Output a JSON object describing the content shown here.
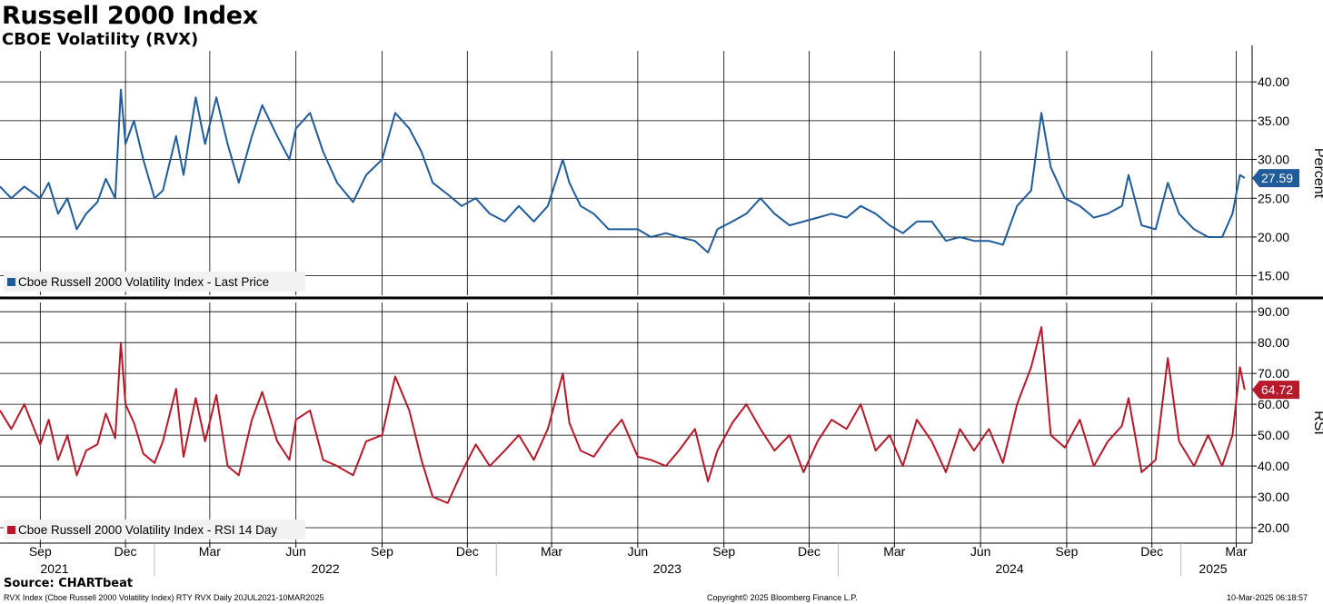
{
  "header": {
    "title": "Russell 2000 Index",
    "subtitle": "CBOE Volatility (RVX)"
  },
  "footer": {
    "source": "Source: CHARTbeat",
    "ticker_info": "RVX Index (Cboe Russell 2000 Volatility Index) RTY RVX  Daily 20JUL2021-10MAR2025",
    "copyright": "Copyright© 2025 Bloomberg Finance L.P.",
    "timestamp": "10-Mar-2025 06:18:57"
  },
  "colors": {
    "price_line": "#1f5c99",
    "rsi_line": "#b5192a",
    "grid": "#000000"
  },
  "chart_data": [
    {
      "type": "line",
      "title": "Cboe Russell 2000 Volatility Index - Last Price",
      "ylabel": "Percent",
      "ylim": [
        12.5,
        44
      ],
      "y_ticks": [
        "40.00",
        "35.00",
        "30.00",
        "25.00",
        "20.00",
        "15.00"
      ],
      "last_value_label": "27.59",
      "legend": "Cboe Russell 2000 Volatility Index - Last Price",
      "legend_position": "bottom-left",
      "series": [
        {
          "name": "Cboe Russell 2000 Volatility Index - Last Price",
          "x": [
            "2021-07-20",
            "2021-08-01",
            "2021-08-15",
            "2021-09-01",
            "2021-09-10",
            "2021-09-20",
            "2021-09-30",
            "2021-10-10",
            "2021-10-20",
            "2021-11-01",
            "2021-11-10",
            "2021-11-20",
            "2021-11-26",
            "2021-12-01",
            "2021-12-10",
            "2021-12-20",
            "2022-01-01",
            "2022-01-10",
            "2022-01-24",
            "2022-02-01",
            "2022-02-14",
            "2022-02-24",
            "2022-03-08",
            "2022-03-20",
            "2022-04-01",
            "2022-04-15",
            "2022-04-26",
            "2022-05-12",
            "2022-05-25",
            "2022-06-01",
            "2022-06-16",
            "2022-06-30",
            "2022-07-15",
            "2022-08-01",
            "2022-08-15",
            "2022-09-01",
            "2022-09-15",
            "2022-09-30",
            "2022-10-13",
            "2022-10-25",
            "2022-11-10",
            "2022-11-25",
            "2022-12-10",
            "2022-12-25",
            "2023-01-10",
            "2023-01-25",
            "2023-02-10",
            "2023-02-25",
            "2023-03-13",
            "2023-03-20",
            "2023-04-01",
            "2023-04-15",
            "2023-05-01",
            "2023-05-15",
            "2023-06-01",
            "2023-06-15",
            "2023-07-01",
            "2023-07-15",
            "2023-08-01",
            "2023-08-15",
            "2023-08-25",
            "2023-09-10",
            "2023-09-25",
            "2023-10-10",
            "2023-10-25",
            "2023-11-10",
            "2023-11-25",
            "2023-12-10",
            "2023-12-25",
            "2024-01-10",
            "2024-01-25",
            "2024-02-10",
            "2024-02-25",
            "2024-03-10",
            "2024-03-25",
            "2024-04-10",
            "2024-04-25",
            "2024-05-10",
            "2024-05-25",
            "2024-06-10",
            "2024-06-25",
            "2024-07-10",
            "2024-07-25",
            "2024-08-05",
            "2024-08-15",
            "2024-08-30",
            "2024-09-15",
            "2024-09-30",
            "2024-10-15",
            "2024-10-30",
            "2024-11-06",
            "2024-11-20",
            "2024-12-05",
            "2024-12-18",
            "2024-12-30",
            "2025-01-15",
            "2025-01-30",
            "2025-02-14",
            "2025-02-25",
            "2025-03-05",
            "2025-03-10"
          ],
          "values": [
            26.5,
            25.0,
            26.5,
            25.0,
            27.0,
            23.0,
            25.0,
            21.0,
            23.0,
            24.5,
            27.5,
            25.0,
            39.0,
            32.0,
            35.0,
            30.0,
            25.0,
            26.0,
            33.0,
            28.0,
            38.0,
            32.0,
            38.0,
            32.0,
            27.0,
            33.0,
            37.0,
            33.0,
            30.0,
            34.0,
            36.0,
            31.0,
            27.0,
            24.5,
            28.0,
            30.0,
            36.0,
            34.0,
            31.0,
            27.0,
            25.5,
            24.0,
            25.0,
            23.0,
            22.0,
            24.0,
            22.0,
            24.0,
            30.0,
            27.0,
            24.0,
            23.0,
            21.0,
            21.0,
            21.0,
            20.0,
            20.5,
            20.0,
            19.5,
            18.0,
            21.0,
            22.0,
            23.0,
            25.0,
            23.0,
            21.5,
            22.0,
            22.5,
            23.0,
            22.5,
            24.0,
            23.0,
            21.5,
            20.5,
            22.0,
            22.0,
            19.5,
            20.0,
            19.5,
            19.5,
            19.0,
            24.0,
            26.0,
            36.0,
            29.0,
            25.0,
            24.0,
            22.5,
            23.0,
            24.0,
            28.0,
            21.5,
            21.0,
            27.0,
            23.0,
            21.0,
            20.0,
            20.0,
            23.0,
            28.0,
            27.59
          ]
        }
      ]
    },
    {
      "type": "line",
      "title": "Cboe Russell 2000 Volatility Index - RSI 14 Day",
      "ylabel": "RSI",
      "ylim": [
        15,
        93
      ],
      "y_ticks": [
        "90.00",
        "80.00",
        "70.00",
        "60.00",
        "50.00",
        "40.00",
        "30.00",
        "20.00"
      ],
      "last_value_label": "64.72",
      "legend": "Cboe Russell 2000 Volatility Index - RSI 14 Day",
      "legend_position": "bottom-left",
      "series": [
        {
          "name": "Cboe Russell 2000 Volatility Index - RSI 14 Day",
          "x": [
            "2021-07-20",
            "2021-08-01",
            "2021-08-15",
            "2021-09-01",
            "2021-09-10",
            "2021-09-20",
            "2021-09-30",
            "2021-10-10",
            "2021-10-20",
            "2021-11-01",
            "2021-11-10",
            "2021-11-20",
            "2021-11-26",
            "2021-12-01",
            "2021-12-10",
            "2021-12-20",
            "2022-01-01",
            "2022-01-10",
            "2022-01-24",
            "2022-02-01",
            "2022-02-14",
            "2022-02-24",
            "2022-03-08",
            "2022-03-20",
            "2022-04-01",
            "2022-04-15",
            "2022-04-26",
            "2022-05-12",
            "2022-05-25",
            "2022-06-01",
            "2022-06-16",
            "2022-06-30",
            "2022-07-15",
            "2022-08-01",
            "2022-08-15",
            "2022-09-01",
            "2022-09-15",
            "2022-09-30",
            "2022-10-13",
            "2022-10-25",
            "2022-11-10",
            "2022-11-25",
            "2022-12-10",
            "2022-12-25",
            "2023-01-10",
            "2023-01-25",
            "2023-02-10",
            "2023-02-25",
            "2023-03-13",
            "2023-03-20",
            "2023-04-01",
            "2023-04-15",
            "2023-05-01",
            "2023-05-15",
            "2023-06-01",
            "2023-06-15",
            "2023-07-01",
            "2023-07-15",
            "2023-08-01",
            "2023-08-15",
            "2023-08-25",
            "2023-09-10",
            "2023-09-25",
            "2023-10-10",
            "2023-10-25",
            "2023-11-10",
            "2023-11-25",
            "2023-12-10",
            "2023-12-25",
            "2024-01-10",
            "2024-01-25",
            "2024-02-10",
            "2024-02-25",
            "2024-03-10",
            "2024-03-25",
            "2024-04-10",
            "2024-04-25",
            "2024-05-10",
            "2024-05-25",
            "2024-06-10",
            "2024-06-25",
            "2024-07-10",
            "2024-07-25",
            "2024-08-05",
            "2024-08-15",
            "2024-08-30",
            "2024-09-15",
            "2024-09-30",
            "2024-10-15",
            "2024-10-30",
            "2024-11-06",
            "2024-11-20",
            "2024-12-05",
            "2024-12-18",
            "2024-12-30",
            "2025-01-15",
            "2025-01-30",
            "2025-02-14",
            "2025-02-25",
            "2025-03-05",
            "2025-03-10"
          ],
          "values": [
            58.0,
            52.0,
            60.0,
            47.0,
            55.0,
            42.0,
            50.0,
            37.0,
            45.0,
            47.0,
            57.0,
            49.0,
            80.0,
            60.0,
            54.0,
            44.0,
            41.0,
            48.0,
            65.0,
            43.0,
            62.0,
            48.0,
            63.0,
            40.0,
            37.0,
            55.0,
            64.0,
            48.0,
            42.0,
            55.0,
            58.0,
            42.0,
            40.0,
            37.0,
            48.0,
            50.0,
            69.0,
            58.0,
            42.0,
            30.0,
            28.0,
            38.0,
            47.0,
            40.0,
            45.0,
            50.0,
            42.0,
            52.0,
            70.0,
            54.0,
            45.0,
            43.0,
            50.0,
            55.0,
            43.0,
            42.0,
            40.0,
            45.0,
            52.0,
            35.0,
            45.0,
            54.0,
            60.0,
            52.0,
            45.0,
            50.0,
            38.0,
            48.0,
            55.0,
            52.0,
            60.0,
            45.0,
            50.0,
            40.0,
            55.0,
            48.0,
            38.0,
            52.0,
            45.0,
            52.0,
            41.0,
            60.0,
            72.0,
            85.0,
            50.0,
            46.0,
            55.0,
            40.0,
            48.0,
            53.0,
            62.0,
            38.0,
            42.0,
            75.0,
            48.0,
            40.0,
            50.0,
            40.0,
            50.0,
            72.0,
            64.72
          ]
        }
      ]
    }
  ],
  "x_axis": {
    "months": [
      "Sep",
      "Dec",
      "Mar",
      "Jun",
      "Sep",
      "Dec",
      "Mar",
      "Jun",
      "Sep",
      "Dec",
      "Mar",
      "Jun",
      "Sep",
      "Dec",
      "Mar"
    ],
    "years": [
      "2021",
      "2022",
      "2023",
      "2024",
      "2025"
    ]
  }
}
